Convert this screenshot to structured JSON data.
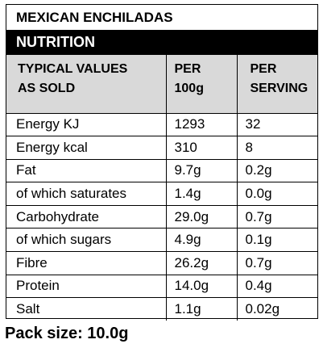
{
  "label": {
    "product_title": "MEXICAN ENCHILADAS",
    "section_title": "NUTRITION",
    "header": {
      "label_line1": "TYPICAL VALUES",
      "label_line2": "AS SOLD",
      "per100_line1": "PER",
      "per100_line2": "100g",
      "serving_line1": "PER",
      "serving_line2": "SERVING"
    },
    "rows": [
      {
        "name": "Energy KJ",
        "per_100g": "1293",
        "per_serving": "32"
      },
      {
        "name": "Energy kcal",
        "per_100g": "310",
        "per_serving": "8"
      },
      {
        "name": "Fat",
        "per_100g": "9.7g",
        "per_serving": "0.2g"
      },
      {
        "name": "of which saturates",
        "per_100g": "1.4g",
        "per_serving": "0.0g"
      },
      {
        "name": "Carbohydrate",
        "per_100g": "29.0g",
        "per_serving": "0.7g"
      },
      {
        "name": "of which sugars",
        "per_100g": "4.9g",
        "per_serving": "0.1g"
      },
      {
        "name": "Fibre",
        "per_100g": "26.2g",
        "per_serving": "0.7g"
      },
      {
        "name": "Protein",
        "per_100g": "14.0g",
        "per_serving": "0.4g"
      },
      {
        "name": "Salt",
        "per_100g": "1.1g",
        "per_serving": "0.02g"
      }
    ],
    "pack_size": "Pack size: 10.0g"
  }
}
